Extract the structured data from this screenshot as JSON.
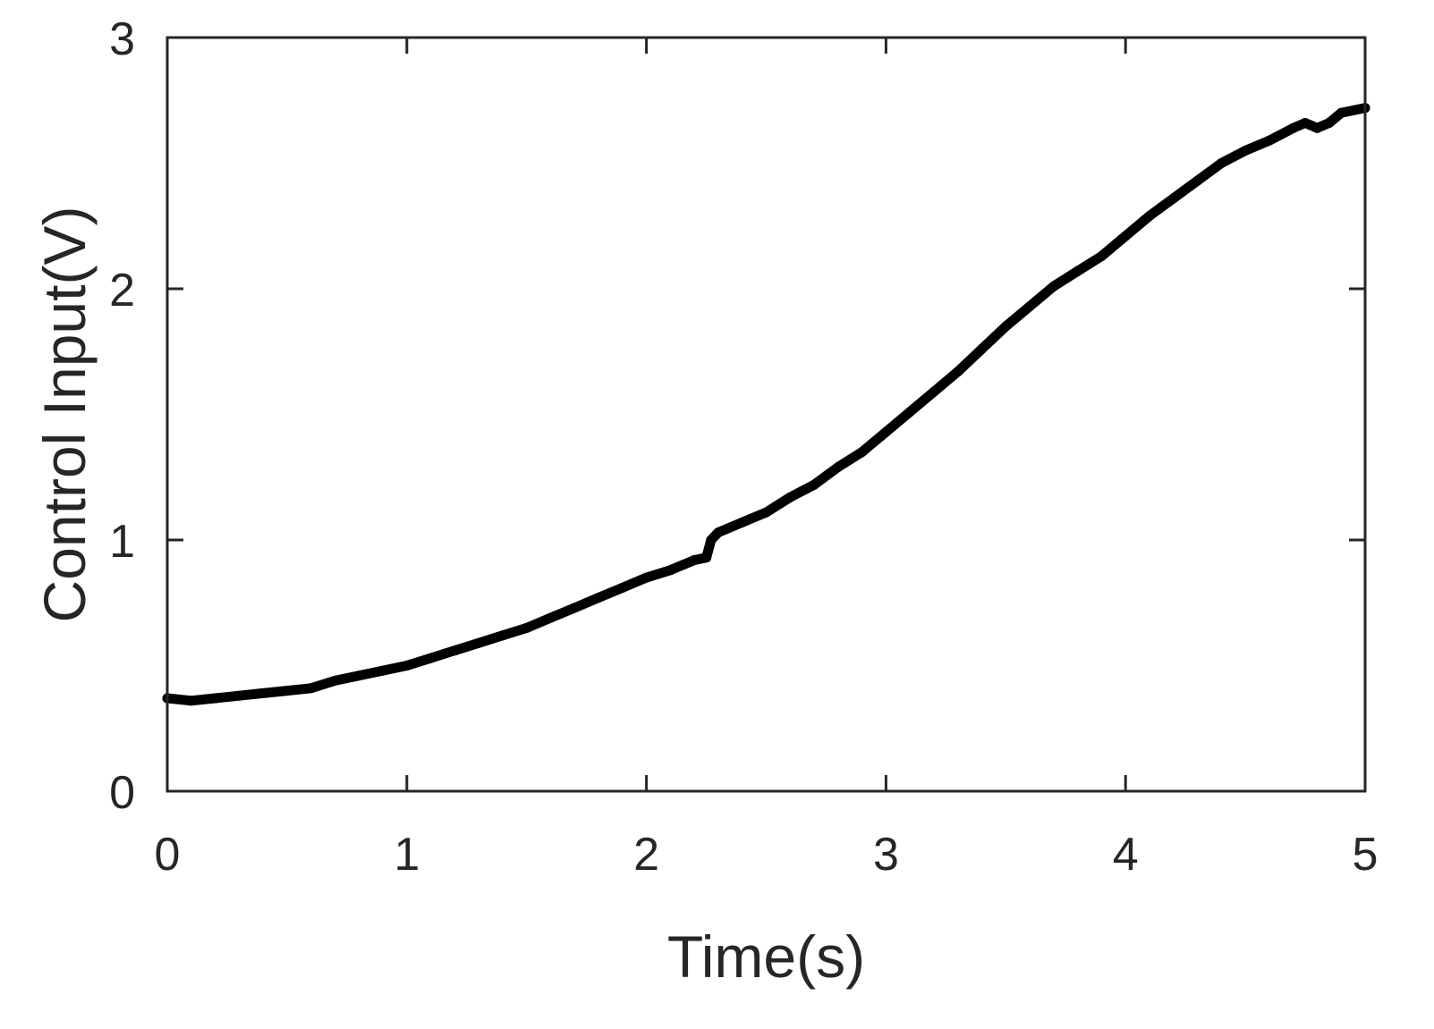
{
  "chart_data": {
    "type": "line",
    "title": "",
    "xlabel": "Time(s)",
    "ylabel": "Control Input(V)",
    "xlim": [
      0,
      5
    ],
    "ylim": [
      0,
      3
    ],
    "xticks": [
      0,
      1,
      2,
      3,
      4,
      5
    ],
    "yticks": [
      0,
      1,
      2,
      3
    ],
    "xtick_labels": [
      "0",
      "1",
      "2",
      "3",
      "4",
      "5"
    ],
    "ytick_labels": [
      "0",
      "1",
      "2",
      "3"
    ],
    "grid": false,
    "box": true,
    "series": [
      {
        "color": "#000000",
        "x": [
          0.0,
          0.1,
          0.2,
          0.3,
          0.4,
          0.5,
          0.6,
          0.7,
          0.8,
          0.9,
          1.0,
          1.1,
          1.2,
          1.3,
          1.4,
          1.5,
          1.6,
          1.7,
          1.8,
          1.9,
          2.0,
          2.1,
          2.2,
          2.25,
          2.27,
          2.3,
          2.4,
          2.5,
          2.6,
          2.7,
          2.8,
          2.9,
          3.0,
          3.1,
          3.2,
          3.3,
          3.4,
          3.5,
          3.6,
          3.7,
          3.8,
          3.9,
          4.0,
          4.1,
          4.2,
          4.3,
          4.4,
          4.5,
          4.6,
          4.7,
          4.75,
          4.8,
          4.85,
          4.9,
          5.0
        ],
        "y": [
          0.37,
          0.36,
          0.37,
          0.38,
          0.39,
          0.4,
          0.41,
          0.44,
          0.46,
          0.48,
          0.5,
          0.53,
          0.56,
          0.59,
          0.62,
          0.65,
          0.69,
          0.73,
          0.77,
          0.81,
          0.85,
          0.88,
          0.92,
          0.93,
          1.0,
          1.03,
          1.07,
          1.11,
          1.17,
          1.22,
          1.29,
          1.35,
          1.43,
          1.51,
          1.59,
          1.67,
          1.76,
          1.85,
          1.93,
          2.01,
          2.07,
          2.13,
          2.21,
          2.29,
          2.36,
          2.43,
          2.5,
          2.55,
          2.59,
          2.64,
          2.66,
          2.64,
          2.66,
          2.7,
          2.72
        ]
      }
    ]
  }
}
